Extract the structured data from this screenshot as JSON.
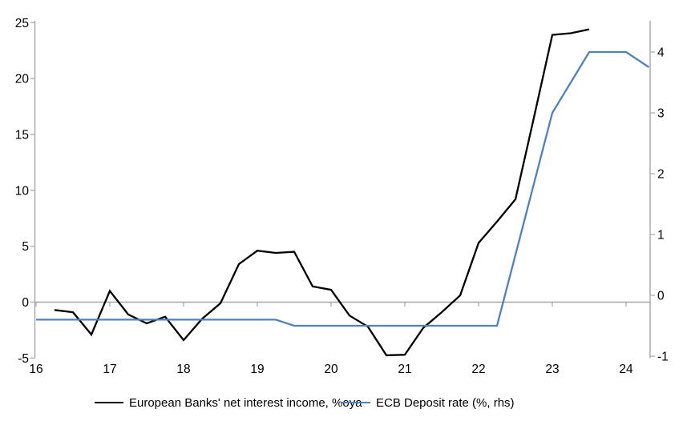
{
  "chart_data": {
    "type": "line",
    "title": "",
    "x_axis": {
      "min": 16,
      "max": 24.33,
      "ticks": [
        16,
        17,
        18,
        19,
        20,
        21,
        22,
        23,
        24
      ],
      "tick_labels": [
        "16",
        "17",
        "18",
        "19",
        "20",
        "21",
        "22",
        "23",
        "24"
      ]
    },
    "left_axis": {
      "label": "",
      "min": -5,
      "max": 25.2,
      "ticks": [
        25,
        20,
        15,
        10,
        5,
        0,
        -5
      ],
      "zero_line": true
    },
    "right_axis": {
      "label": "",
      "min": -1,
      "max": 4.5,
      "ticks": [
        4,
        3,
        2,
        1,
        0,
        -1
      ]
    },
    "series": [
      {
        "name": "European Banks' net interest income, %oya",
        "axis": "left",
        "color": "#000000",
        "points": [
          [
            16.25,
            -0.7
          ],
          [
            16.5,
            -0.9
          ],
          [
            16.75,
            -2.9
          ],
          [
            17.0,
            1.0
          ],
          [
            17.25,
            -1.1
          ],
          [
            17.5,
            -1.9
          ],
          [
            17.75,
            -1.3
          ],
          [
            18.0,
            -3.4
          ],
          [
            18.25,
            -1.5
          ],
          [
            18.5,
            -0.1
          ],
          [
            18.75,
            3.4
          ],
          [
            19.0,
            4.6
          ],
          [
            19.25,
            4.4
          ],
          [
            19.5,
            4.5
          ],
          [
            19.75,
            1.4
          ],
          [
            20.0,
            1.1
          ],
          [
            20.25,
            -1.2
          ],
          [
            20.5,
            -2.2
          ],
          [
            20.75,
            -4.75
          ],
          [
            21.0,
            -4.7
          ],
          [
            21.25,
            -2.3
          ],
          [
            21.5,
            -0.9
          ],
          [
            21.75,
            0.6
          ],
          [
            22.0,
            5.3
          ],
          [
            22.25,
            7.2
          ],
          [
            22.5,
            9.2
          ],
          [
            22.75,
            16.5
          ],
          [
            23.0,
            23.9
          ],
          [
            23.25,
            24.05
          ],
          [
            23.5,
            24.4
          ]
        ]
      },
      {
        "name": "ECB Deposit rate (%, rhs)",
        "axis": "right",
        "color": "#4f81bd",
        "points": [
          [
            16.0,
            -0.4
          ],
          [
            19.25,
            -0.4
          ],
          [
            19.5,
            -0.5
          ],
          [
            22.25,
            -0.5
          ],
          [
            23.0,
            3.0
          ],
          [
            23.5,
            4.0
          ],
          [
            24.0,
            4.0
          ],
          [
            24.31,
            3.75
          ]
        ]
      }
    ],
    "legend": {
      "position": "bottom"
    },
    "colors": {
      "axis_line": "#a6a6a6",
      "zero_line": "#a6a6a6",
      "tick_text": "#000000",
      "background": "#ffffff"
    }
  }
}
